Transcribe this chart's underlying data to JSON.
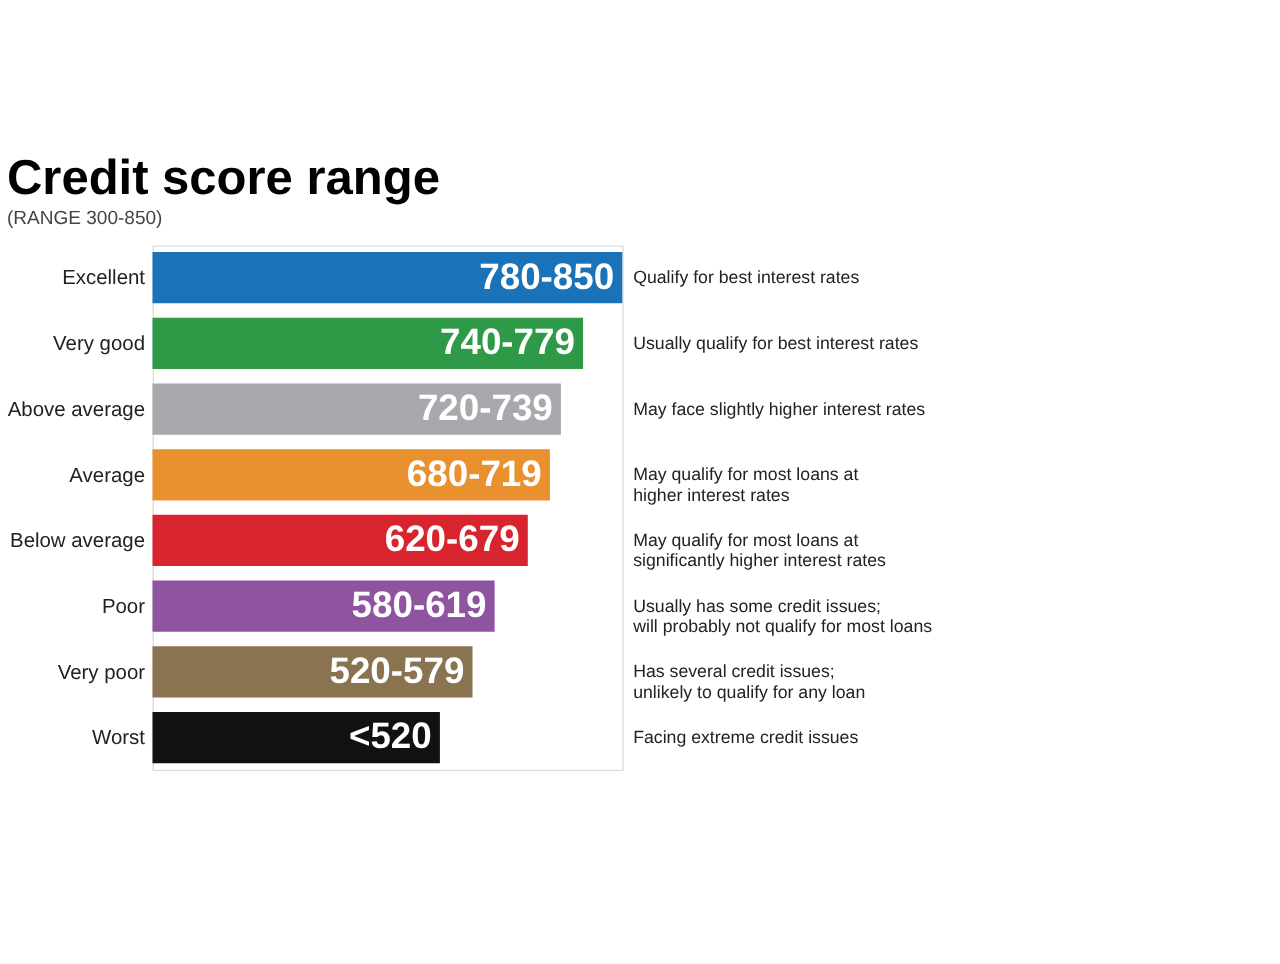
{
  "chart_data": {
    "type": "bar",
    "orientation": "horizontal",
    "title": "Credit score range",
    "subtitle": "(RANGE 300-850)",
    "categories": [
      "Excellent",
      "Very good",
      "Above average",
      "Average",
      "Below average",
      "Poor",
      "Very poor",
      "Worst"
    ],
    "values": [
      850,
      779,
      739,
      719,
      679,
      619,
      579,
      520
    ],
    "xlim": [
      0,
      850
    ],
    "tick_labels": "y",
    "colors": [
      "#1a72b8",
      "#2e9a47",
      "#a7a9ac",
      "#e8912e",
      "#d7242f",
      "#8e54a0",
      "#8a7350",
      "#111111"
    ],
    "value_labels": [
      "780-850",
      "740-779",
      "720-739",
      "680-719",
      "620-679",
      "580-619",
      "520-579",
      "<520"
    ],
    "annotations": [
      "Qualify for best interest rates",
      "Usually qualify for best interest rates",
      "May face slightly higher interest rates",
      "May qualify for most loans at\nhigher interest rates",
      "May qualify for most loans at\nsignificantly higher interest rates",
      "Usually has some credit issues;\nwill probably not qualify for most loans",
      "Has several credit issues;\nunlikely to qualify for any loan",
      "Facing extreme credit issues"
    ]
  }
}
